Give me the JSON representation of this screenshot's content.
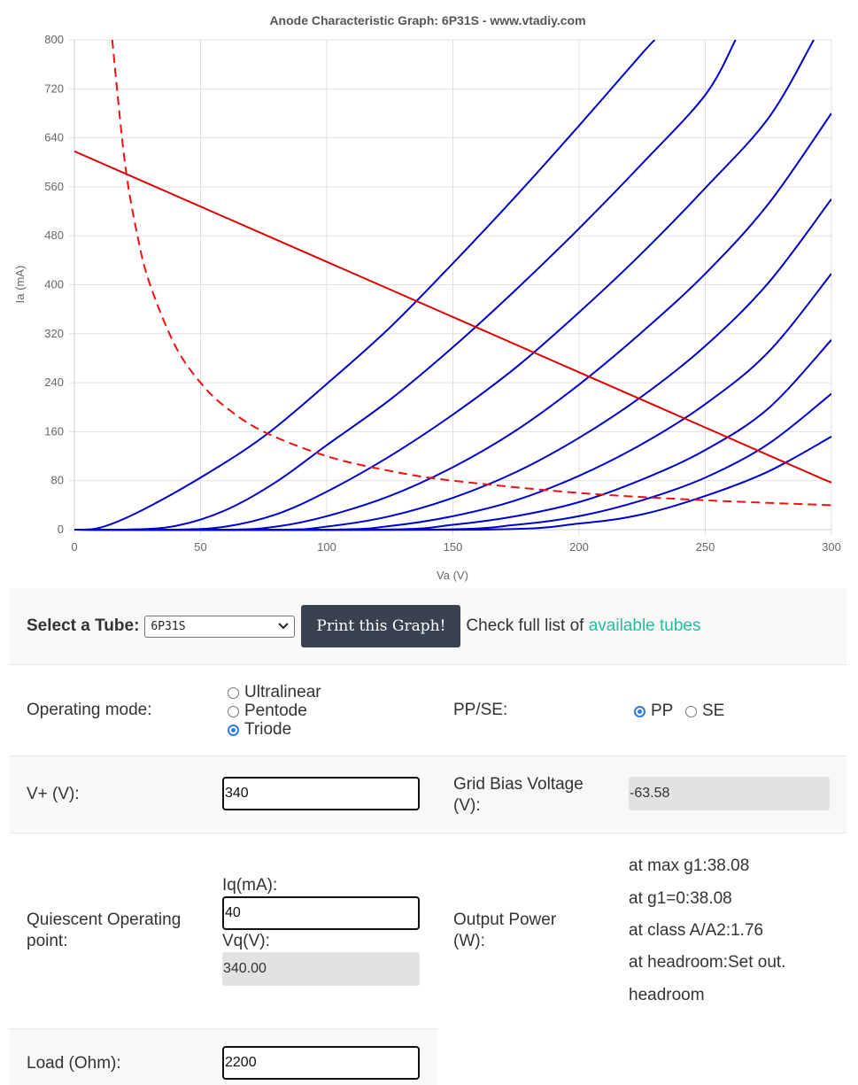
{
  "chart_data": {
    "type": "line",
    "title": "Anode Characteristic Graph: 6P31S - www.vtadiy.com",
    "xlabel": "Va (V)",
    "ylabel": "Ia (mA)",
    "xlim": [
      0,
      300
    ],
    "ylim": [
      0,
      800
    ],
    "x_ticks": [
      0,
      50,
      100,
      150,
      200,
      250,
      300
    ],
    "y_ticks": [
      0,
      80,
      160,
      240,
      320,
      400,
      480,
      560,
      640,
      720,
      800
    ],
    "grid": true,
    "legend": "none",
    "series": [
      {
        "style": "blue-curve",
        "x": [
          0,
          10,
          25,
          50,
          75,
          100,
          125,
          150,
          175,
          200,
          225,
          230
        ],
        "y": [
          0,
          3,
          28,
          85,
          152,
          238,
          330,
          435,
          545,
          660,
          778,
          800
        ]
      },
      {
        "style": "blue-curve",
        "x": [
          0,
          20,
          40,
          60,
          80,
          100,
          125,
          150,
          175,
          200,
          225,
          250,
          262
        ],
        "y": [
          0,
          0,
          6,
          32,
          78,
          138,
          212,
          298,
          392,
          492,
          598,
          710,
          800
        ]
      },
      {
        "style": "blue-curve",
        "x": [
          0,
          40,
          60,
          80,
          100,
          125,
          150,
          175,
          200,
          225,
          250,
          275,
          293
        ],
        "y": [
          0,
          0,
          5,
          25,
          62,
          120,
          188,
          265,
          355,
          452,
          558,
          672,
          800
        ]
      },
      {
        "style": "blue-curve",
        "x": [
          0,
          60,
          80,
          100,
          125,
          150,
          175,
          200,
          225,
          250,
          275,
          300
        ],
        "y": [
          0,
          0,
          5,
          22,
          55,
          102,
          162,
          237,
          323,
          418,
          532,
          680
        ]
      },
      {
        "style": "blue-curve",
        "x": [
          0,
          80,
          100,
          125,
          150,
          175,
          200,
          225,
          250,
          275,
          300
        ],
        "y": [
          0,
          0,
          5,
          22,
          52,
          94,
          150,
          218,
          300,
          403,
          540
        ]
      },
      {
        "style": "blue-curve",
        "x": [
          0,
          100,
          125,
          150,
          175,
          200,
          225,
          250,
          275,
          300
        ],
        "y": [
          0,
          0,
          6,
          22,
          48,
          88,
          140,
          205,
          290,
          418
        ]
      },
      {
        "style": "blue-curve",
        "x": [
          0,
          120,
          150,
          175,
          200,
          225,
          250,
          275,
          300
        ],
        "y": [
          0,
          0,
          8,
          22,
          45,
          82,
          130,
          198,
          310
        ]
      },
      {
        "style": "blue-curve",
        "x": [
          0,
          140,
          175,
          200,
          225,
          250,
          275,
          300
        ],
        "y": [
          0,
          0,
          8,
          22,
          48,
          85,
          140,
          222
        ]
      },
      {
        "style": "blue-curve",
        "x": [
          0,
          160,
          200,
          225,
          250,
          275,
          300
        ],
        "y": [
          0,
          0,
          10,
          25,
          55,
          95,
          152
        ]
      },
      {
        "style": "load-line",
        "x": [
          0,
          297,
          300
        ],
        "y": [
          618,
          82,
          77
        ]
      },
      {
        "style": "dissipation-dashed",
        "x": [
          15,
          20,
          25,
          30,
          40,
          50,
          60,
          75,
          100,
          125,
          150,
          200,
          250,
          300
        ],
        "y": [
          800,
          600,
          480,
          400,
          300,
          240,
          200,
          160,
          120,
          96,
          80,
          60,
          48,
          40
        ]
      }
    ],
    "colors": {
      "blue_curves": "#0000cc",
      "load_line": "#dd0000",
      "dissipation": "#ee1111",
      "grid": "#e0e0e0"
    }
  },
  "controls": {
    "select_tube_label": "Select a Tube:",
    "tube_value": "6P31S",
    "print_button": "Print this Graph!",
    "check_text": "Check full list of",
    "check_link": "available tubes",
    "operating_mode_label": "Operating mode:",
    "mode_options": [
      "Ultralinear",
      "Pentode",
      "Triode"
    ],
    "mode_selected": "Triode",
    "ppse_label": "PP/SE:",
    "ppse_options": [
      "PP",
      "SE"
    ],
    "ppse_selected": "PP",
    "vplus_label": "V+ (V):",
    "vplus_value": "340",
    "grid_bias_label_1": "Grid Bias Voltage",
    "grid_bias_label_2": "(V):",
    "grid_bias_value": "-63.58",
    "quiescent_label_1": "Quiescent Operating",
    "quiescent_label_2": "point:",
    "iq_label": "Iq(mA):",
    "iq_value": "40",
    "vq_label": "Vq(V):",
    "vq_value": "340.00",
    "output_power_label_1": "Output Power",
    "output_power_label_2": "(W):",
    "power_max_g1": "at max g1:38.08",
    "power_g1_zero": "at g1=0:38.08",
    "power_class_a": "at class A/A2:1.76",
    "power_headroom_1": "at headroom:Set out.",
    "power_headroom_2": "headroom",
    "load_label": "Load (Ohm):",
    "load_value": "2200"
  }
}
